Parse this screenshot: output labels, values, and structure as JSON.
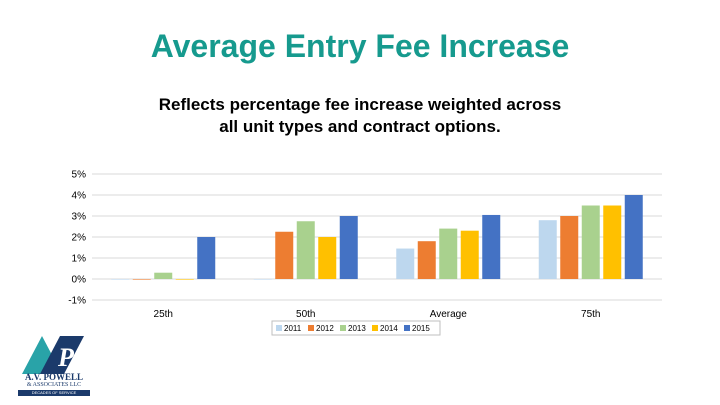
{
  "slide": {
    "title": "Average Entry Fee Increase",
    "subtitle_line1": "Reflects percentage fee increase weighted across",
    "subtitle_line2": "all unit types and contract options."
  },
  "logo": {
    "line1": "A.V. POWELL",
    "line2": "& ASSOCIATES LLC",
    "line3": "DECADES OF SERVICE",
    "colors": {
      "teal": "#29a3a8",
      "navy": "#1b3a6b"
    }
  },
  "chart_data": {
    "type": "bar",
    "categories": [
      "25th",
      "50th",
      "Average",
      "75th"
    ],
    "series": [
      {
        "name": "2011",
        "color": "#bdd7ee",
        "values": [
          0.0,
          0.0,
          1.45,
          2.8
        ]
      },
      {
        "name": "2012",
        "color": "#ed7d31",
        "values": [
          0.0,
          2.25,
          1.8,
          3.0
        ]
      },
      {
        "name": "2013",
        "color": "#a9d18e",
        "values": [
          0.3,
          2.75,
          2.4,
          3.5
        ]
      },
      {
        "name": "2014",
        "color": "#ffc000",
        "values": [
          0.0,
          2.0,
          2.3,
          3.5
        ]
      },
      {
        "name": "2015",
        "color": "#4472c4",
        "values": [
          2.0,
          3.0,
          3.05,
          4.0
        ]
      }
    ],
    "yticks": [
      "5%",
      "4%",
      "3%",
      "2%",
      "1%",
      "0%",
      "-1%"
    ],
    "ylim": [
      -1,
      5
    ],
    "grid": true,
    "legend_position": "bottom"
  }
}
